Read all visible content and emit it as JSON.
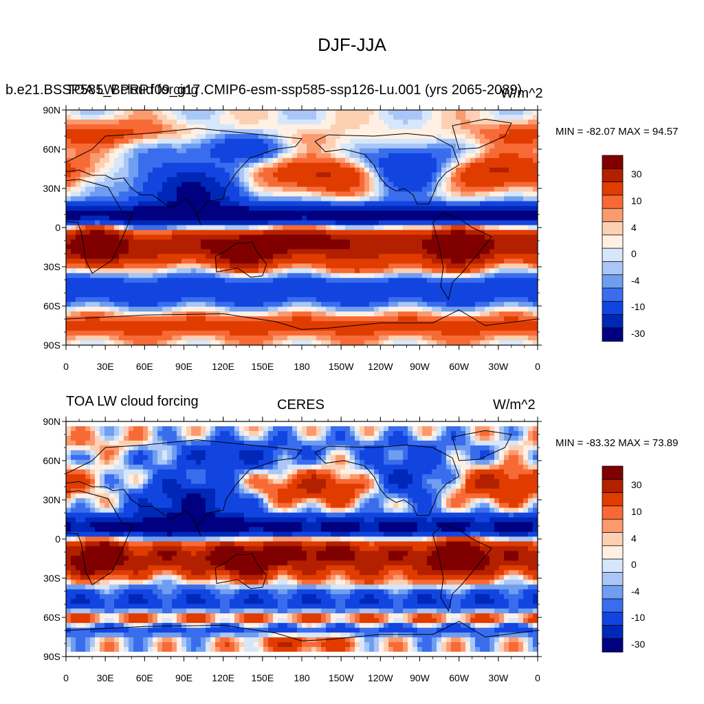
{
  "figure": {
    "title": "DJF-JJA",
    "colors": {
      "palette": [
        "#800000",
        "#b32000",
        "#e03c00",
        "#f76a36",
        "#fa9a6e",
        "#fdd0b4",
        "#fff0e3",
        "#d6e7fb",
        "#a9c6f6",
        "#6f9ef0",
        "#3a6ded",
        "#1245e0",
        "#0028b8",
        "#000080"
      ],
      "coast": "#000000",
      "missing": "#ffffff"
    }
  },
  "chart_data": [
    {
      "type": "heatmap",
      "title_left": "b.e21.BSSP585_BPRP.f09_g17.CMIP6-esm-ssp585-ssp126-Lu.001 (yrs 2065-2089)",
      "title_overlap_left": "TOA LW cloud forcing",
      "units": "W/m^2",
      "min_label": "MIN = -82.07 MAX =  94.57",
      "min": -82.07,
      "max": 94.57,
      "lat_ticks": [
        "90N",
        "60N",
        "30N",
        "0",
        "30S",
        "60S",
        "90S"
      ],
      "lon_ticks": [
        "0",
        "30E",
        "60E",
        "90E",
        "120E",
        "150E",
        "180",
        "150W",
        "120W",
        "90W",
        "60W",
        "30W",
        "0"
      ],
      "colorbar_levels": [
        -40,
        -30,
        -20,
        -10,
        -6,
        -4,
        -2,
        0,
        2,
        4,
        6,
        10,
        20,
        30,
        40
      ],
      "colorbar_labels": [
        "30",
        "10",
        "4",
        "0",
        "-4",
        "-10",
        "-30"
      ],
      "legend_position": "right"
    },
    {
      "type": "heatmap",
      "title_left": "TOA LW cloud forcing",
      "title_center": "CERES",
      "units": "W/m^2",
      "min_label": "MIN = -83.32 MAX =  73.89",
      "min": -83.32,
      "max": 73.89,
      "lat_ticks": [
        "90N",
        "60N",
        "30N",
        "0",
        "30S",
        "60S",
        "90S"
      ],
      "lon_ticks": [
        "0",
        "30E",
        "60E",
        "90E",
        "120E",
        "150E",
        "180",
        "150W",
        "120W",
        "90W",
        "60W",
        "30W",
        "0"
      ],
      "colorbar_levels": [
        -40,
        -30,
        -20,
        -10,
        -6,
        -4,
        -2,
        0,
        2,
        4,
        6,
        10,
        20,
        30,
        40
      ],
      "colorbar_labels": [
        "30",
        "10",
        "4",
        "0",
        "-4",
        "-10",
        "-30"
      ],
      "legend_position": "right"
    }
  ]
}
